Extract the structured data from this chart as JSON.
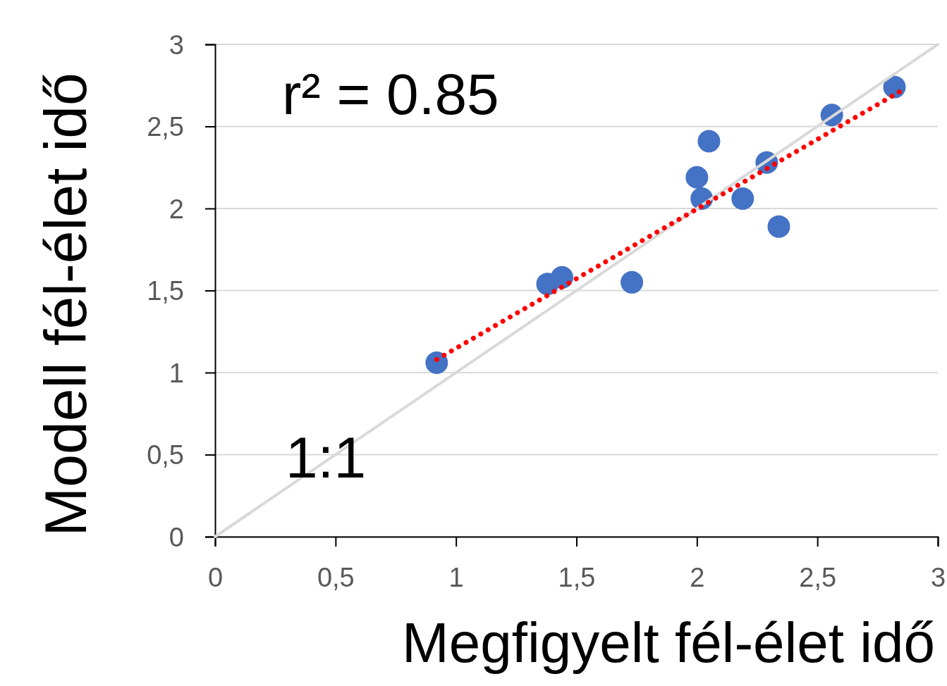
{
  "chart_data": {
    "type": "scatter",
    "xlabel": "Megfigyelt fél-élet idő",
    "ylabel": "Modell fél-élet idő",
    "xlim": [
      0,
      3
    ],
    "ylim": [
      0,
      3
    ],
    "xticks": [
      0,
      {
        "value": 0.5,
        "label": "0,5"
      },
      1,
      {
        "value": 1.5,
        "label": "1,5"
      },
      2,
      {
        "value": 2.5,
        "label": "2,5"
      },
      3
    ],
    "yticks": [
      0,
      {
        "value": 0.5,
        "label": "0,5"
      },
      1,
      {
        "value": 1.5,
        "label": "1,5"
      },
      2,
      {
        "value": 2.5,
        "label": "2,5"
      },
      3
    ],
    "grid": "y",
    "annotations": [
      "r² = 0.85",
      "1:1"
    ],
    "series": [
      {
        "type": "line",
        "color": "#d9d9d9",
        "line_style": "solid",
        "marker": "none",
        "x": [
          0,
          3
        ],
        "values": [
          0,
          3
        ]
      },
      {
        "type": "line",
        "color": "#ff0000",
        "line_style": "dotted",
        "marker": "none",
        "x": [
          0.92,
          2.84
        ],
        "values": [
          1.08,
          2.71
        ]
      },
      {
        "marker": "circle",
        "color": "#4472c4",
        "x": [
          0.92,
          1.38,
          1.44,
          1.73,
          2.0,
          2.02,
          2.05,
          2.19,
          2.29,
          2.34,
          2.56,
          2.82
        ],
        "values": [
          1.06,
          1.54,
          1.58,
          1.55,
          2.19,
          2.06,
          2.41,
          2.06,
          2.28,
          1.89,
          2.57,
          2.74
        ]
      }
    ]
  }
}
